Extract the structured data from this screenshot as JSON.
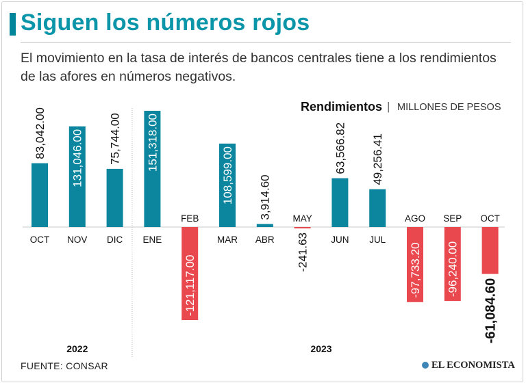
{
  "header": {
    "title": "Siguen los números rojos",
    "subtitle": "El movimiento en la tasa de interés de bancos centrales tiene a los rendimientos de las afores en números negativos."
  },
  "footer": {
    "source": "FUENTE: CONSAR",
    "brand": "EL ECONOMISTA"
  },
  "colors": {
    "positive": "#0c859e",
    "negative": "#e8484e",
    "title": "#0b95a9"
  },
  "chart_data": {
    "type": "bar",
    "title": "Rendimientos",
    "unit": "MILLONES DE PESOS",
    "categories": [
      "OCT",
      "NOV",
      "DIC",
      "ENE",
      "FEB",
      "MAR",
      "ABR",
      "MAY",
      "JUN",
      "JUL",
      "AGO",
      "SEP",
      "OCT"
    ],
    "values": [
      83042.0,
      131046.0,
      75744.0,
      151318.0,
      -121117.0,
      108599.0,
      3914.6,
      -241.63,
      63566.82,
      49256.41,
      -97733.2,
      -96240.0,
      -61084.6
    ],
    "labels": [
      "83,042.00",
      "131,046.00",
      "75,744.00",
      "151,318.00",
      "-121,117.00",
      "108,599.00",
      "3,914.60",
      "-241.63",
      "63,566.82",
      "49,256.41",
      "-97,733.20",
      "-96,240.00",
      "-61,084.60"
    ],
    "years": [
      {
        "label": "2022",
        "months": 3
      },
      {
        "label": "2023",
        "months": 10
      }
    ],
    "ylim": [
      -121117,
      151318
    ]
  }
}
